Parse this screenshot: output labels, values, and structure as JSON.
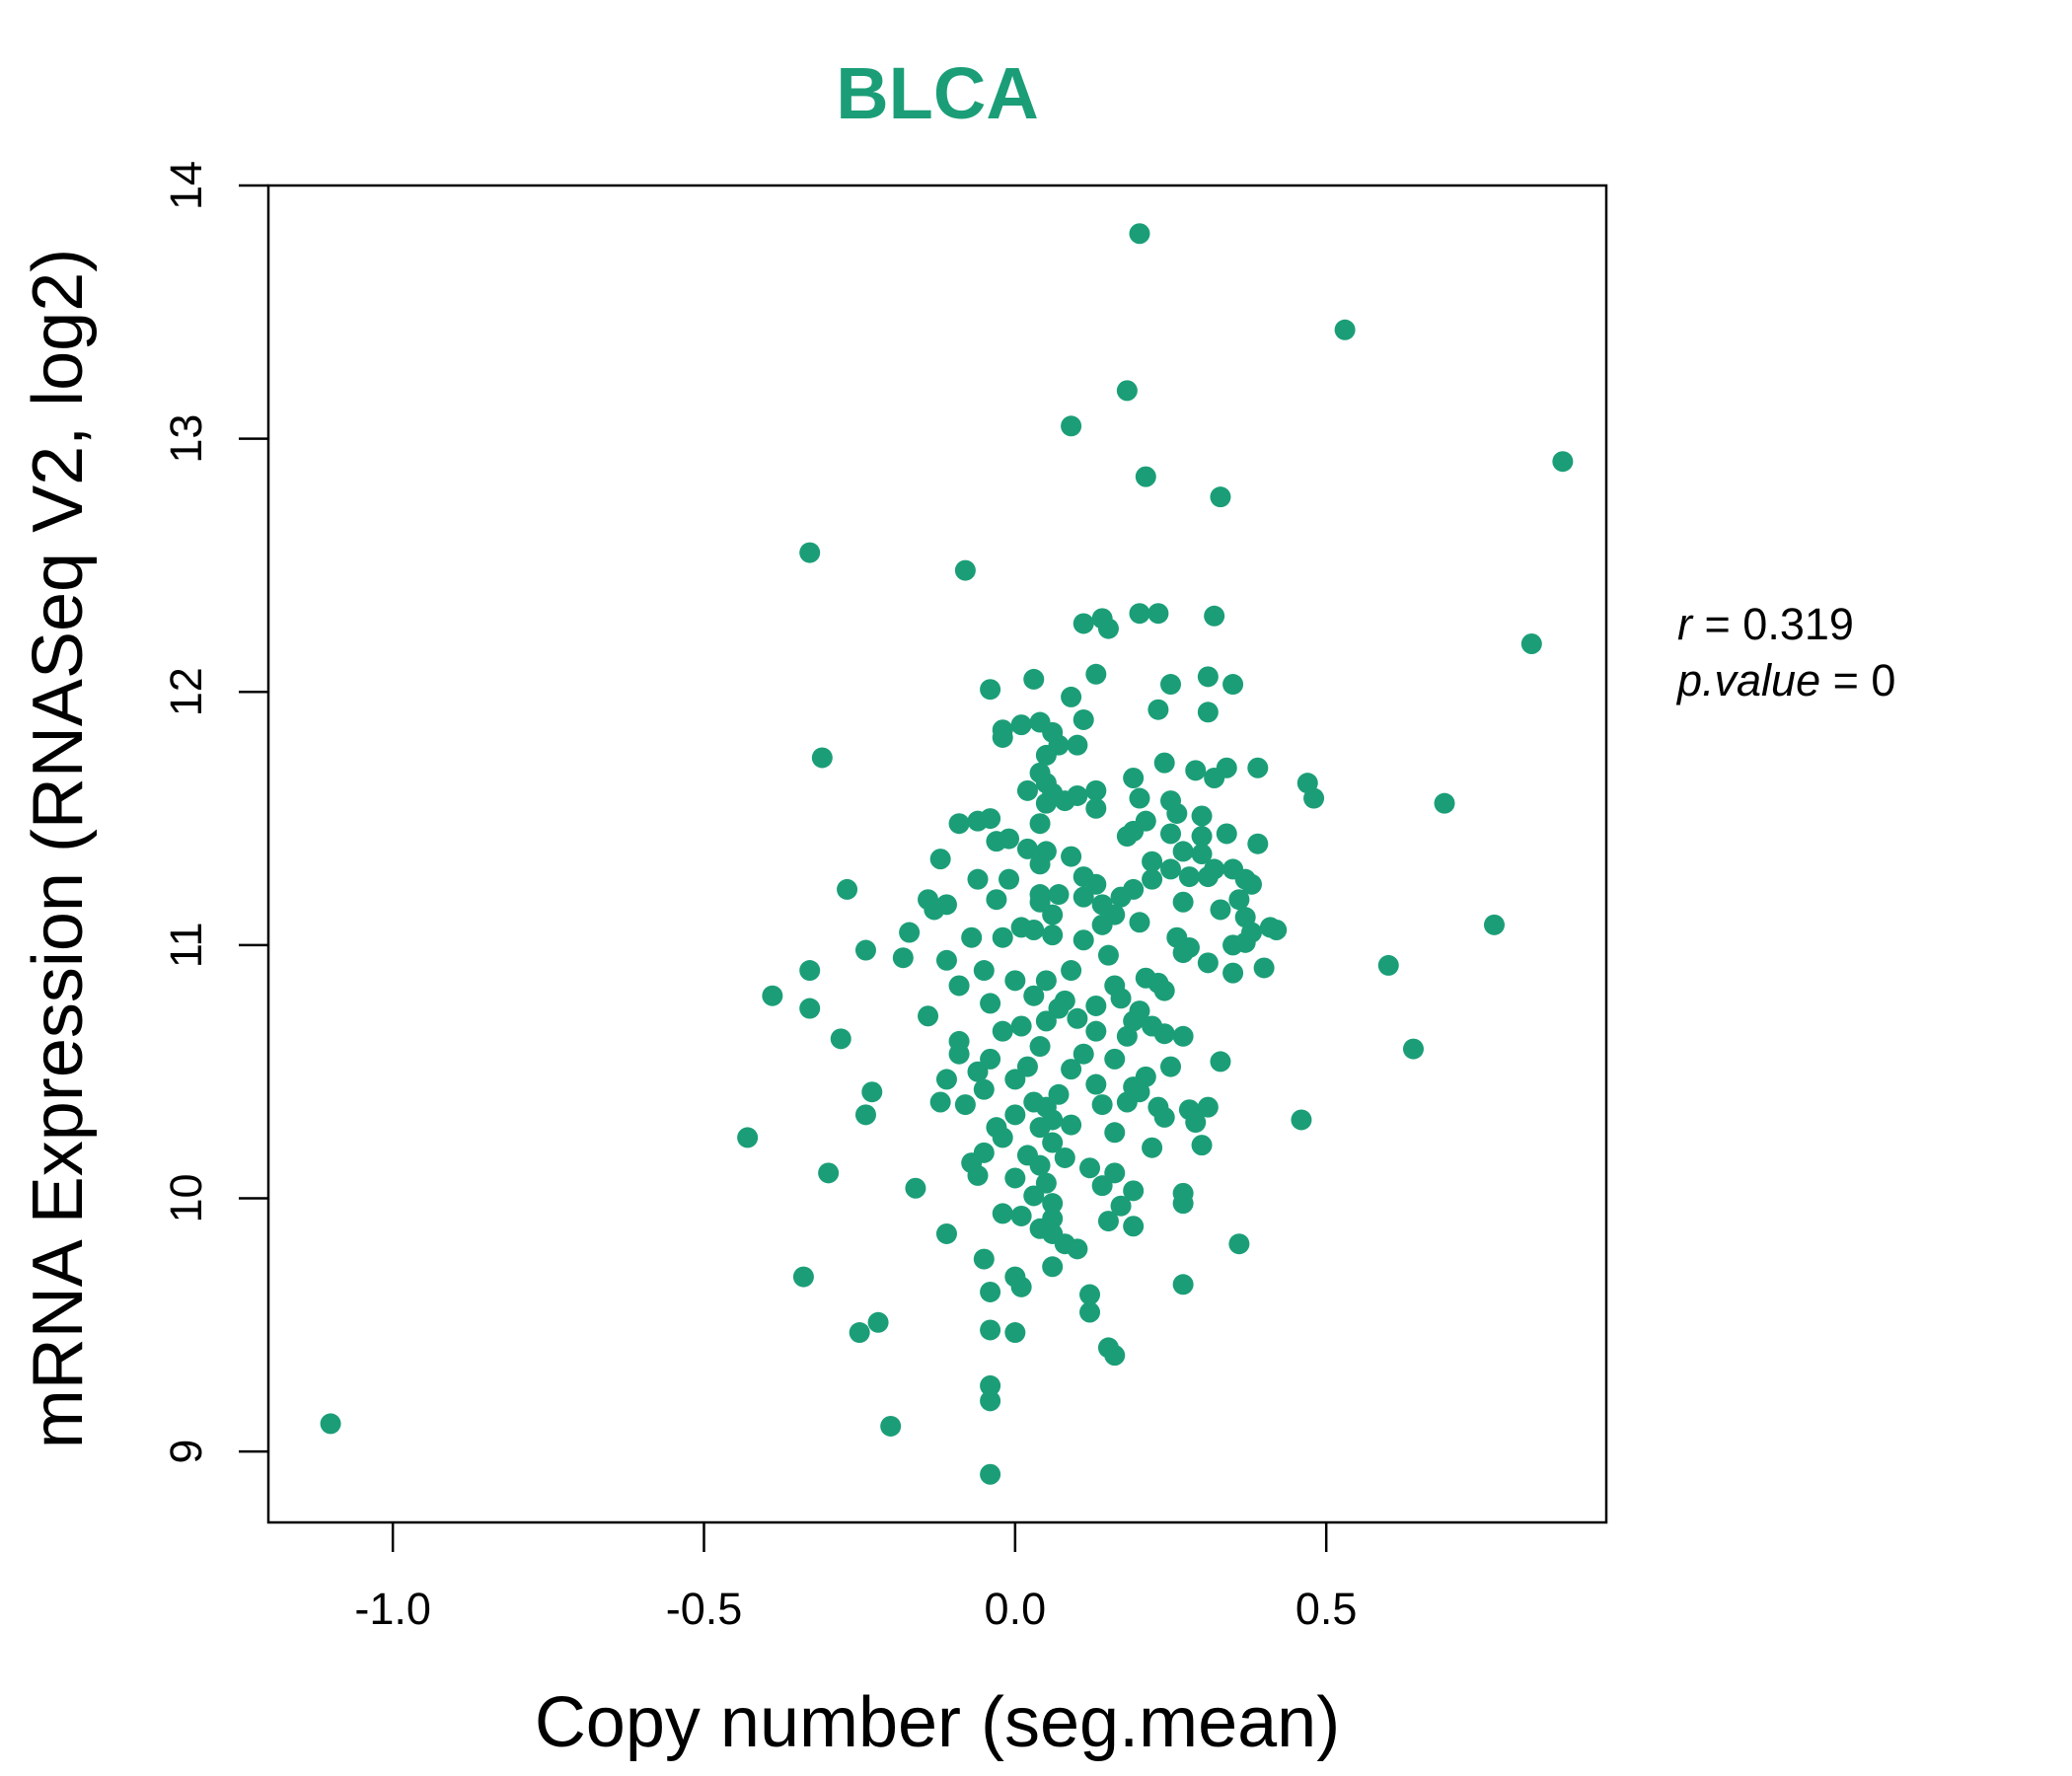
{
  "chart_data": {
    "type": "scatter",
    "title": "BLCA",
    "xlabel": "Copy number (seg.mean)",
    "ylabel": "mRNA Expression (RNASeq V2, log2)",
    "xlim": [
      -1.2,
      0.95
    ],
    "ylim": [
      8.72,
      14.0
    ],
    "x_ticks": [
      -1.0,
      -0.5,
      0.0,
      0.5
    ],
    "x_tick_labels": [
      "-1.0",
      "-0.5",
      "0.0",
      "0.5"
    ],
    "y_ticks": [
      9,
      10,
      11,
      12,
      13,
      14
    ],
    "y_tick_labels": [
      "9",
      "10",
      "11",
      "12",
      "13",
      "14"
    ],
    "grid": false,
    "stats": {
      "r_symbol": "r",
      "r_value": "0.319",
      "p_symbol": "p.value",
      "p_value": "0"
    },
    "colors": {
      "points": "#1b9e77",
      "title": "#1b9e77",
      "axes": "#000000"
    },
    "points": [
      [
        -1.1,
        9.11
      ],
      [
        0.2,
        13.81
      ],
      [
        0.53,
        13.43
      ],
      [
        0.18,
        13.19
      ],
      [
        0.09,
        13.05
      ],
      [
        0.88,
        12.91
      ],
      [
        0.21,
        12.85
      ],
      [
        0.33,
        12.77
      ],
      [
        -0.33,
        12.55
      ],
      [
        -0.08,
        12.48
      ],
      [
        0.83,
        12.19
      ],
      [
        0.23,
        12.31
      ],
      [
        0.2,
        12.31
      ],
      [
        0.14,
        12.29
      ],
      [
        0.11,
        12.27
      ],
      [
        0.15,
        12.25
      ],
      [
        0.32,
        12.3
      ],
      [
        0.13,
        12.07
      ],
      [
        0.25,
        12.03
      ],
      [
        0.31,
        12.06
      ],
      [
        0.35,
        12.03
      ],
      [
        0.03,
        12.05
      ],
      [
        -0.04,
        12.01
      ],
      [
        0.09,
        11.98
      ],
      [
        0.23,
        11.93
      ],
      [
        0.31,
        11.92
      ],
      [
        0.11,
        11.89
      ],
      [
        -0.02,
        11.85
      ],
      [
        0.01,
        11.87
      ],
      [
        0.04,
        11.88
      ],
      [
        -0.02,
        11.82
      ],
      [
        0.06,
        11.84
      ],
      [
        0.1,
        11.79
      ],
      [
        0.07,
        11.79
      ],
      [
        0.05,
        11.75
      ],
      [
        -0.31,
        11.74
      ],
      [
        0.34,
        11.7
      ],
      [
        0.39,
        11.7
      ],
      [
        0.24,
        11.72
      ],
      [
        0.29,
        11.69
      ],
      [
        0.19,
        11.66
      ],
      [
        0.32,
        11.66
      ],
      [
        0.04,
        11.68
      ],
      [
        0.05,
        11.64
      ],
      [
        0.06,
        11.6
      ],
      [
        0.02,
        11.61
      ],
      [
        0.13,
        11.61
      ],
      [
        0.1,
        11.59
      ],
      [
        0.2,
        11.58
      ],
      [
        0.25,
        11.57
      ],
      [
        0.47,
        11.64
      ],
      [
        0.48,
        11.58
      ],
      [
        0.69,
        11.56
      ],
      [
        0.08,
        11.57
      ],
      [
        0.05,
        11.56
      ],
      [
        0.13,
        11.54
      ],
      [
        0.26,
        11.52
      ],
      [
        0.21,
        11.49
      ],
      [
        0.3,
        11.51
      ],
      [
        -0.04,
        11.5
      ],
      [
        -0.06,
        11.49
      ],
      [
        -0.09,
        11.48
      ],
      [
        0.04,
        11.48
      ],
      [
        0.19,
        11.45
      ],
      [
        0.18,
        11.43
      ],
      [
        0.25,
        11.44
      ],
      [
        0.3,
        11.43
      ],
      [
        0.34,
        11.44
      ],
      [
        -0.01,
        11.42
      ],
      [
        -0.03,
        11.41
      ],
      [
        0.39,
        11.4
      ],
      [
        0.27,
        11.37
      ],
      [
        0.02,
        11.38
      ],
      [
        0.05,
        11.37
      ],
      [
        0.3,
        11.36
      ],
      [
        0.09,
        11.35
      ],
      [
        -0.12,
        11.34
      ],
      [
        0.04,
        11.32
      ],
      [
        0.22,
        11.33
      ],
      [
        0.25,
        11.3
      ],
      [
        0.32,
        11.3
      ],
      [
        0.35,
        11.3
      ],
      [
        0.28,
        11.27
      ],
      [
        0.37,
        11.26
      ],
      [
        0.38,
        11.24
      ],
      [
        -0.06,
        11.26
      ],
      [
        -0.01,
        11.26
      ],
      [
        0.11,
        11.27
      ],
      [
        0.13,
        11.24
      ],
      [
        0.22,
        11.26
      ],
      [
        0.31,
        11.27
      ],
      [
        -0.27,
        11.22
      ],
      [
        0.19,
        11.22
      ],
      [
        0.07,
        11.2
      ],
      [
        0.04,
        11.2
      ],
      [
        -0.03,
        11.18
      ],
      [
        0.04,
        11.17
      ],
      [
        0.11,
        11.19
      ],
      [
        0.14,
        11.16
      ],
      [
        0.17,
        11.19
      ],
      [
        0.36,
        11.18
      ],
      [
        0.27,
        11.17
      ],
      [
        -0.14,
        11.18
      ],
      [
        -0.11,
        11.16
      ],
      [
        -0.13,
        11.14
      ],
      [
        0.06,
        11.12
      ],
      [
        0.16,
        11.12
      ],
      [
        0.33,
        11.14
      ],
      [
        0.37,
        11.11
      ],
      [
        0.77,
        11.08
      ],
      [
        -0.17,
        11.05
      ],
      [
        0.01,
        11.07
      ],
      [
        0.03,
        11.06
      ],
      [
        0.14,
        11.08
      ],
      [
        0.2,
        11.09
      ],
      [
        0.41,
        11.07
      ],
      [
        0.42,
        11.06
      ],
      [
        0.38,
        11.05
      ],
      [
        0.06,
        11.04
      ],
      [
        0.26,
        11.03
      ],
      [
        -0.07,
        11.03
      ],
      [
        -0.02,
        11.03
      ],
      [
        0.11,
        11.02
      ],
      [
        0.28,
        10.99
      ],
      [
        0.35,
        11.0
      ],
      [
        0.37,
        11.01
      ],
      [
        -0.24,
        10.98
      ],
      [
        -0.18,
        10.95
      ],
      [
        -0.11,
        10.94
      ],
      [
        0.15,
        10.96
      ],
      [
        0.27,
        10.97
      ],
      [
        0.31,
        10.93
      ],
      [
        0.6,
        10.92
      ],
      [
        0.4,
        10.91
      ],
      [
        0.35,
        10.89
      ],
      [
        -0.33,
        10.9
      ],
      [
        -0.05,
        10.9
      ],
      [
        0.09,
        10.9
      ],
      [
        0.21,
        10.87
      ],
      [
        0.23,
        10.85
      ],
      [
        -0.09,
        10.84
      ],
      [
        0.0,
        10.86
      ],
      [
        0.05,
        10.86
      ],
      [
        0.16,
        10.84
      ],
      [
        0.24,
        10.82
      ],
      [
        -0.39,
        10.8
      ],
      [
        0.03,
        10.8
      ],
      [
        0.08,
        10.78
      ],
      [
        0.17,
        10.79
      ],
      [
        -0.33,
        10.75
      ],
      [
        -0.04,
        10.77
      ],
      [
        0.07,
        10.75
      ],
      [
        0.13,
        10.76
      ],
      [
        0.2,
        10.74
      ],
      [
        -0.14,
        10.72
      ],
      [
        0.05,
        10.7
      ],
      [
        0.1,
        10.71
      ],
      [
        0.19,
        10.7
      ],
      [
        0.22,
        10.68
      ],
      [
        0.24,
        10.65
      ],
      [
        0.01,
        10.68
      ],
      [
        -0.02,
        10.66
      ],
      [
        0.13,
        10.66
      ],
      [
        0.18,
        10.64
      ],
      [
        0.27,
        10.64
      ],
      [
        -0.28,
        10.63
      ],
      [
        -0.09,
        10.62
      ],
      [
        0.04,
        10.6
      ],
      [
        0.64,
        10.59
      ],
      [
        -0.09,
        10.57
      ],
      [
        0.11,
        10.57
      ],
      [
        0.16,
        10.55
      ],
      [
        0.33,
        10.54
      ],
      [
        0.25,
        10.52
      ],
      [
        -0.04,
        10.55
      ],
      [
        0.02,
        10.52
      ],
      [
        -0.06,
        10.5
      ],
      [
        0.09,
        10.51
      ],
      [
        0.21,
        10.48
      ],
      [
        -0.11,
        10.47
      ],
      [
        0.0,
        10.47
      ],
      [
        0.13,
        10.45
      ],
      [
        0.19,
        10.44
      ],
      [
        -0.05,
        10.43
      ],
      [
        0.07,
        10.41
      ],
      [
        0.2,
        10.42
      ],
      [
        -0.23,
        10.42
      ],
      [
        0.18,
        10.38
      ],
      [
        -0.12,
        10.38
      ],
      [
        -0.08,
        10.37
      ],
      [
        0.03,
        10.38
      ],
      [
        0.05,
        10.36
      ],
      [
        0.14,
        10.37
      ],
      [
        0.23,
        10.36
      ],
      [
        0.28,
        10.35
      ],
      [
        0.31,
        10.36
      ],
      [
        -0.24,
        10.33
      ],
      [
        0.0,
        10.33
      ],
      [
        0.06,
        10.31
      ],
      [
        0.24,
        10.32
      ],
      [
        0.29,
        10.3
      ],
      [
        0.46,
        10.31
      ],
      [
        -0.03,
        10.28
      ],
      [
        0.04,
        10.28
      ],
      [
        0.09,
        10.29
      ],
      [
        0.16,
        10.26
      ],
      [
        -0.43,
        10.24
      ],
      [
        -0.02,
        10.24
      ],
      [
        0.06,
        10.22
      ],
      [
        0.22,
        10.2
      ],
      [
        0.3,
        10.21
      ],
      [
        -0.05,
        10.18
      ],
      [
        0.02,
        10.17
      ],
      [
        0.08,
        10.16
      ],
      [
        -0.07,
        10.14
      ],
      [
        0.04,
        10.13
      ],
      [
        0.12,
        10.12
      ],
      [
        0.16,
        10.1
      ],
      [
        -0.3,
        10.1
      ],
      [
        -0.06,
        10.09
      ],
      [
        0.0,
        10.08
      ],
      [
        0.05,
        10.06
      ],
      [
        0.14,
        10.05
      ],
      [
        0.19,
        10.03
      ],
      [
        -0.16,
        10.04
      ],
      [
        0.27,
        10.02
      ],
      [
        0.03,
        10.01
      ],
      [
        0.06,
        9.98
      ],
      [
        0.17,
        9.97
      ],
      [
        0.27,
        9.98
      ],
      [
        -0.02,
        9.94
      ],
      [
        0.01,
        9.93
      ],
      [
        0.06,
        9.92
      ],
      [
        0.15,
        9.91
      ],
      [
        0.19,
        9.89
      ],
      [
        -0.11,
        9.86
      ],
      [
        0.04,
        9.88
      ],
      [
        0.06,
        9.86
      ],
      [
        0.08,
        9.82
      ],
      [
        0.36,
        9.82
      ],
      [
        0.1,
        9.8
      ],
      [
        -0.05,
        9.76
      ],
      [
        0.06,
        9.73
      ],
      [
        0.0,
        9.69
      ],
      [
        -0.34,
        9.69
      ],
      [
        0.01,
        9.65
      ],
      [
        0.27,
        9.66
      ],
      [
        -0.04,
        9.63
      ],
      [
        0.12,
        9.62
      ],
      [
        0.12,
        9.55
      ],
      [
        -0.22,
        9.51
      ],
      [
        -0.25,
        9.47
      ],
      [
        -0.04,
        9.48
      ],
      [
        0.0,
        9.47
      ],
      [
        0.15,
        9.41
      ],
      [
        0.16,
        9.38
      ],
      [
        -0.04,
        9.26
      ],
      [
        -0.04,
        9.2
      ],
      [
        -0.2,
        9.1
      ],
      [
        -0.04,
        8.91
      ]
    ]
  }
}
